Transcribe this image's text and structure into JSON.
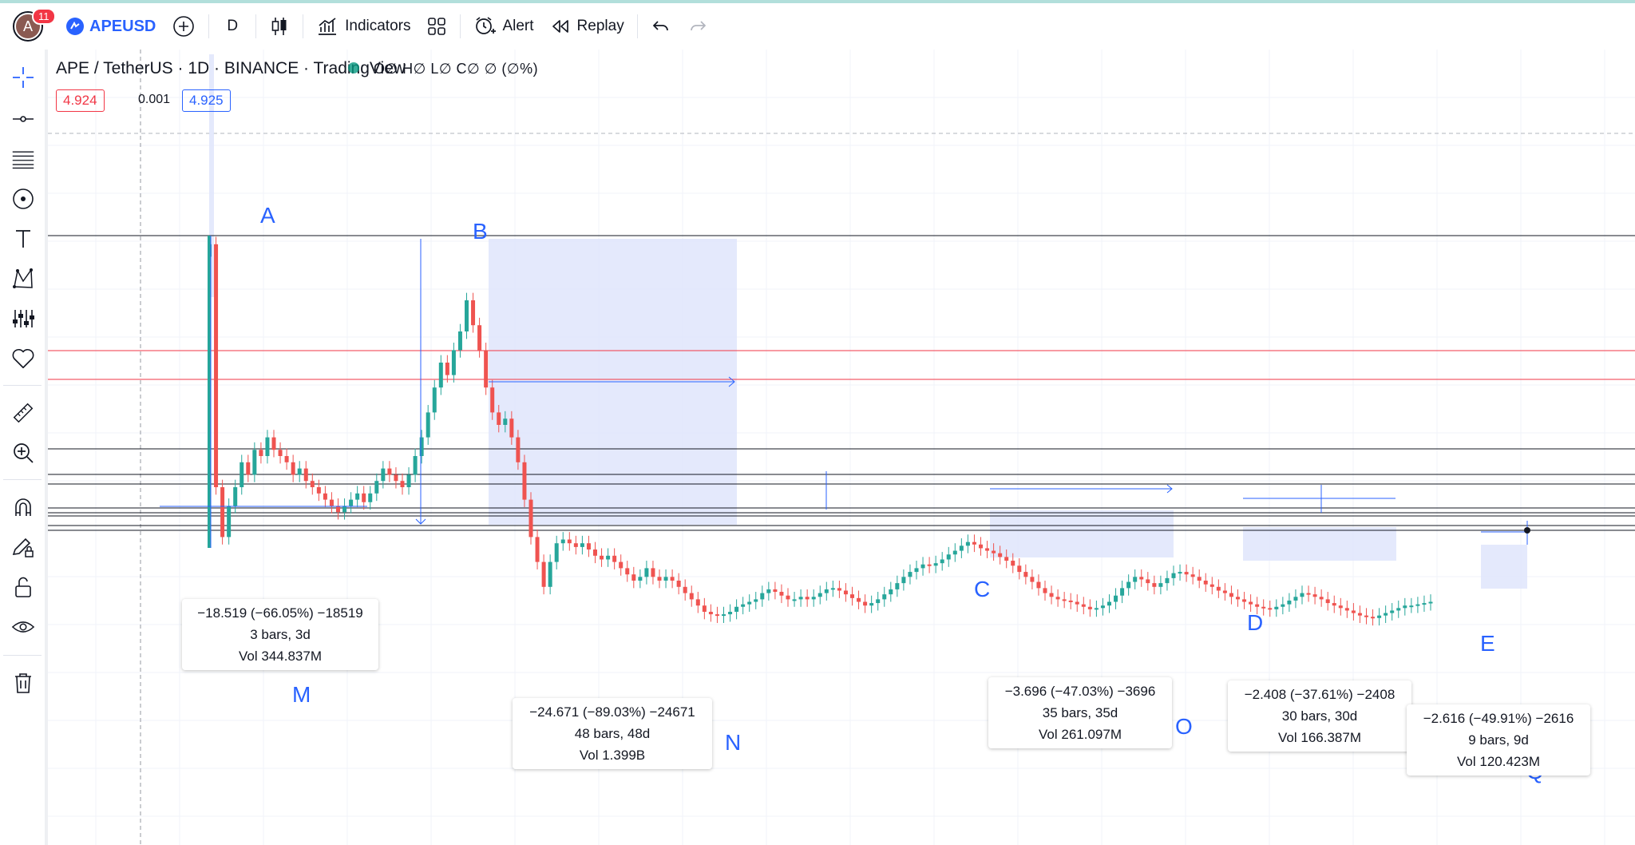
{
  "toolbar": {
    "notification_count": "11",
    "avatar_letter": "A",
    "symbol": "APEUSD",
    "interval": "D",
    "indicators_label": "Indicators",
    "alert_label": "Alert",
    "replay_label": "Replay"
  },
  "legend": {
    "title": "APE / TetherUS · 1D · BINANCE · TradingView",
    "ohlc": "O∅ H∅ L∅ C∅ ∅ (∅%)",
    "sell_price": "4.924",
    "spread": "0.001",
    "buy_price": "4.925"
  },
  "labels": {
    "A": "A",
    "B": "B",
    "C": "C",
    "D": "D",
    "E": "E",
    "M": "M",
    "N": "N",
    "O": "O",
    "Q": "Q"
  },
  "measures": [
    {
      "change": "−18.519 (−66.05%) −18519",
      "bars": "3 bars, 3d",
      "vol": "Vol 344.837M"
    },
    {
      "change": "−24.671 (−89.03%) −24671",
      "bars": "48 bars, 48d",
      "vol": "Vol 1.399B"
    },
    {
      "change": "−3.696 (−47.03%) −3696",
      "bars": "35 bars, 35d",
      "vol": "Vol 261.097M"
    },
    {
      "change": "−2.408 (−37.61%) −2408",
      "bars": "30 bars, 30d",
      "vol": "Vol 166.387M"
    },
    {
      "change": "−2.616 (−49.91%) −2616",
      "bars": "9 bars, 9d",
      "vol": "Vol 120.423M"
    }
  ],
  "colors": {
    "up": "#26a69a",
    "down": "#ef5350",
    "accent": "#2962ff",
    "measure_fill": "#dfe5fb"
  },
  "chart_data": {
    "type": "candlestick",
    "values": [
      39.5,
      20,
      16,
      18.5,
      20,
      22,
      21,
      23,
      22.5,
      24,
      23,
      22.5,
      22,
      21,
      21.5,
      20.5,
      20,
      19.5,
      19,
      18.5,
      18,
      18.5,
      19,
      19.5,
      18.8,
      19.5,
      20.5,
      21.5,
      21,
      20.5,
      20,
      21,
      22.5,
      24,
      26,
      28,
      30,
      29,
      31,
      32.5,
      35,
      33,
      31,
      28,
      26,
      25,
      25.5,
      24,
      22,
      19,
      16,
      14,
      12,
      14,
      15.5,
      15.8,
      15.5,
      15.2,
      15.5,
      15,
      14.5,
      14.2,
      14.5,
      14,
      13.5,
      13,
      12.5,
      12.8,
      13.5,
      12.8,
      12.5,
      12.8,
      12.5,
      12,
      11.5,
      11,
      10.5,
      10,
      9.8,
      9.7,
      9.8,
      10,
      10.4,
      10.6,
      10.8,
      11,
      11.5,
      11.8,
      11.6,
      11.3,
      11,
      11,
      11.2,
      11,
      11.2,
      11.5,
      11.8,
      11.9,
      11.7,
      11.4,
      11.1,
      10.8,
      10.5,
      10.7,
      11,
      11.4,
      11.8,
      12.3,
      12.8,
      13.2,
      13.5,
      13.8,
      13.7,
      13.9,
      14.2,
      14.6,
      14.9,
      15.3,
      15.6,
      15.4,
      15.1,
      14.9,
      14.7,
      14.4,
      14.1,
      13.7,
      13.2,
      12.8,
      12.4,
      11.9,
      11.5,
      11.2,
      11,
      10.9,
      10.8,
      10.6,
      10.4,
      10.2,
      10.3,
      10.5,
      10.8,
      11.3,
      11.9,
      12.4,
      12.8,
      12.6,
      12.3,
      12,
      12.3,
      12.7,
      13.1,
      13.2,
      13,
      12.8,
      12.5,
      12.2,
      12,
      11.7,
      11.5,
      11.2,
      11,
      10.8,
      10.6,
      10.4,
      10.3,
      10.2,
      10.4,
      10.6,
      10.9,
      11.2,
      11.5,
      11.4,
      11.2,
      11,
      10.7,
      10.5,
      10.3,
      10.1,
      9.9,
      9.7,
      9.6,
      9.5,
      9.7,
      9.9,
      10.1,
      10.3,
      10.5,
      10.5,
      10.6,
      10.7,
      10.8
    ]
  }
}
